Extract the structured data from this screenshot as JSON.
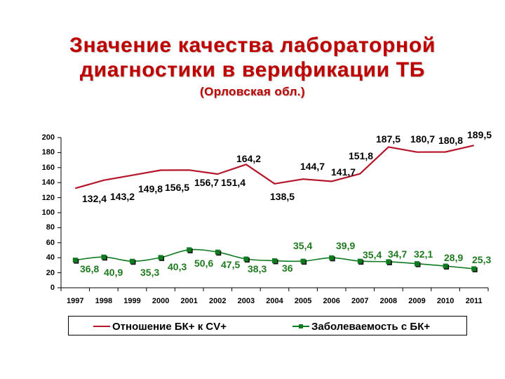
{
  "title": {
    "line1": "Значение качества лабораторной",
    "line2": "диагностики в верификации ТБ",
    "subtitle": "(Орловская обл.)"
  },
  "chart_data": {
    "type": "line",
    "title": "Значение качества лабораторной диагностики в верификации ТБ (Орловская обл.)",
    "xlabel": "",
    "ylabel": "",
    "ylim": [
      0,
      200
    ],
    "yticks": [
      "0",
      "20",
      "40",
      "60",
      "80",
      "100",
      "120",
      "140",
      "160",
      "180",
      "200"
    ],
    "grid": false,
    "legend_position": "bottom",
    "categories": [
      "1997",
      "1998",
      "1999",
      "2000",
      "2001",
      "2002",
      "2003",
      "2004",
      "2005",
      "2006",
      "2007",
      "2008",
      "2009",
      "2010",
      "2011"
    ],
    "series": [
      {
        "name": "Отношение БК+ к CV+",
        "color": "#b5162b",
        "marker": "none",
        "values": [
          132.4,
          143.2,
          149.8,
          156.5,
          156.7,
          151.4,
          164.2,
          138.5,
          144.7,
          141.7,
          151.8,
          187.5,
          180.7,
          180.8,
          189.5
        ],
        "labels": [
          "132,4",
          "143,2",
          "149,8",
          "156,5",
          "156,7",
          "151,4",
          "164,2",
          "138,5",
          "144,7",
          "141,7",
          "151,8",
          "187,5",
          "180,7",
          "180,8",
          "189,5"
        ]
      },
      {
        "name": "Заболеваемость с БК+",
        "color": "#0f7a1f",
        "marker": "square",
        "values": [
          36.8,
          40.9,
          35.3,
          40.3,
          50.6,
          47.5,
          38.3,
          36,
          35.4,
          39.9,
          35.4,
          34.7,
          32.1,
          28.9,
          25.3
        ],
        "labels": [
          "36,8",
          "40,9",
          "35,3",
          "40,3",
          "50,6",
          "47,5",
          "38,3",
          "36",
          "35,4",
          "39,9",
          "35,4",
          "34,7",
          "32,1",
          "28,9",
          "25,3"
        ]
      }
    ]
  }
}
